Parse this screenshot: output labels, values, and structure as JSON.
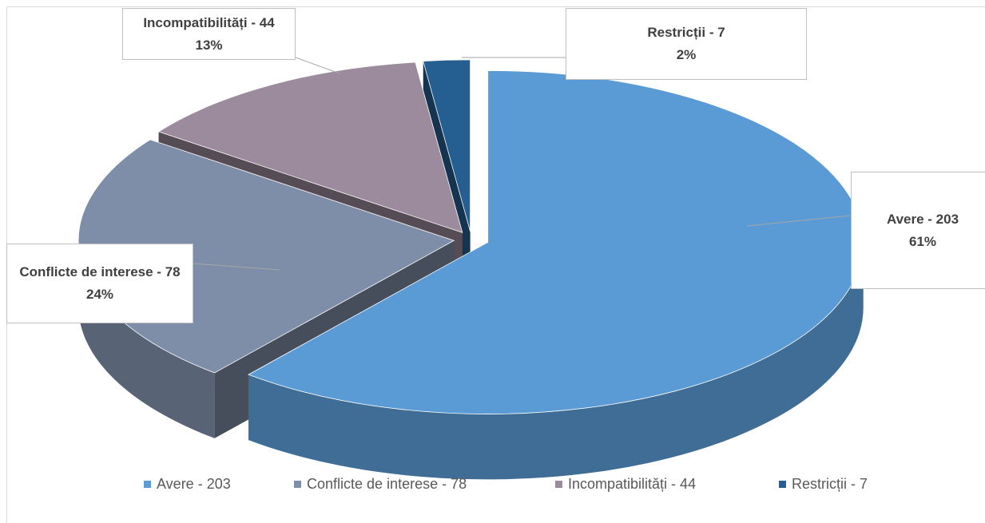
{
  "chart_data": {
    "type": "pie",
    "categories": [
      "Avere - 203",
      "Conflicte de interese - 78",
      "Incompatibilități - 44",
      "Restricții - 7"
    ],
    "values": [
      61,
      24,
      13,
      2
    ],
    "value_labels": [
      "61%",
      "24%",
      "13%",
      "2%"
    ],
    "colors": [
      "#5b9bd5",
      "#7f8ea8",
      "#9c8b9c",
      "#255e91"
    ],
    "legend": "bottom"
  }
}
